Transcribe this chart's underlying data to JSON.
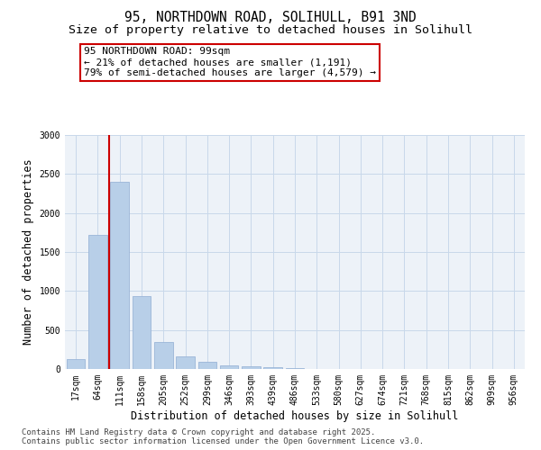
{
  "title_line1": "95, NORTHDOWN ROAD, SOLIHULL, B91 3ND",
  "title_line2": "Size of property relative to detached houses in Solihull",
  "xlabel": "Distribution of detached houses by size in Solihull",
  "ylabel": "Number of detached properties",
  "categories": [
    "17sqm",
    "64sqm",
    "111sqm",
    "158sqm",
    "205sqm",
    "252sqm",
    "299sqm",
    "346sqm",
    "393sqm",
    "439sqm",
    "486sqm",
    "533sqm",
    "580sqm",
    "627sqm",
    "674sqm",
    "721sqm",
    "768sqm",
    "815sqm",
    "862sqm",
    "909sqm",
    "956sqm"
  ],
  "values": [
    130,
    1720,
    2400,
    940,
    350,
    160,
    90,
    50,
    40,
    20,
    10,
    0,
    0,
    0,
    0,
    0,
    0,
    0,
    0,
    0,
    0
  ],
  "bar_color": "#b8cfe8",
  "bar_edgecolor": "#9ab5d8",
  "vline_color": "#cc0000",
  "vline_x_index": 1.5,
  "annotation_text": "95 NORTHDOWN ROAD: 99sqm\n← 21% of detached houses are smaller (1,191)\n79% of semi-detached houses are larger (4,579) →",
  "annotation_box_edgecolor": "#cc0000",
  "ylim": [
    0,
    3000
  ],
  "yticks": [
    0,
    500,
    1000,
    1500,
    2000,
    2500,
    3000
  ],
  "grid_color": "#c8d8ea",
  "bg_color": "#edf2f8",
  "footer_text": "Contains HM Land Registry data © Crown copyright and database right 2025.\nContains public sector information licensed under the Open Government Licence v3.0.",
  "title_fontsize": 10.5,
  "subtitle_fontsize": 9.5,
  "axis_label_fontsize": 8.5,
  "tick_fontsize": 7,
  "annotation_fontsize": 8,
  "footer_fontsize": 6.5
}
